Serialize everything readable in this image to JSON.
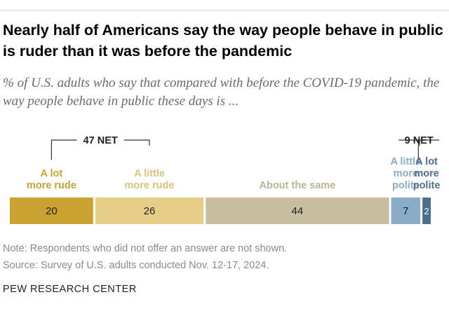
{
  "title": "Nearly half of Americans say the way people behave in public is ruder than it was before the pandemic",
  "subtitle": "% of U.S. adults who say that compared with before the COVID-19 pandemic, the way people behave in public these days is ...",
  "chart_data": {
    "type": "bar",
    "orientation": "horizontal-stacked",
    "categories": [
      "A lot more rude",
      "A little more rude",
      "About the same",
      "A little more polite",
      "A lot more polite"
    ],
    "category_lines": [
      [
        "A lot",
        "more rude"
      ],
      [
        "A little",
        "more rude"
      ],
      [
        "About the same"
      ],
      [
        "A little",
        "more",
        "polite"
      ],
      [
        "A lot",
        "more",
        "polite"
      ]
    ],
    "values": [
      20,
      26,
      44,
      7,
      2
    ],
    "value_labels": [
      "20",
      "26",
      "44",
      "7",
      "2"
    ],
    "colors": [
      "#c9a232",
      "#e6cd88",
      "#c7be9f",
      "#8aacc8",
      "#4c6f8f"
    ],
    "label_colors": [
      "#c9a232",
      "#dcc27a",
      "#bdb495",
      "#8aacc8",
      "#4c6f8f"
    ],
    "net_labels": [
      {
        "label": "47 NET",
        "value": 47,
        "covers": [
          0,
          1
        ]
      },
      {
        "label": "9 NET",
        "value": 9,
        "covers": [
          3,
          4
        ]
      }
    ]
  },
  "note": "Note: Respondents who did not offer an answer are not shown.",
  "source": "Source: Survey of U.S. adults conducted Nov. 12-17, 2024.",
  "org": "PEW RESEARCH CENTER"
}
